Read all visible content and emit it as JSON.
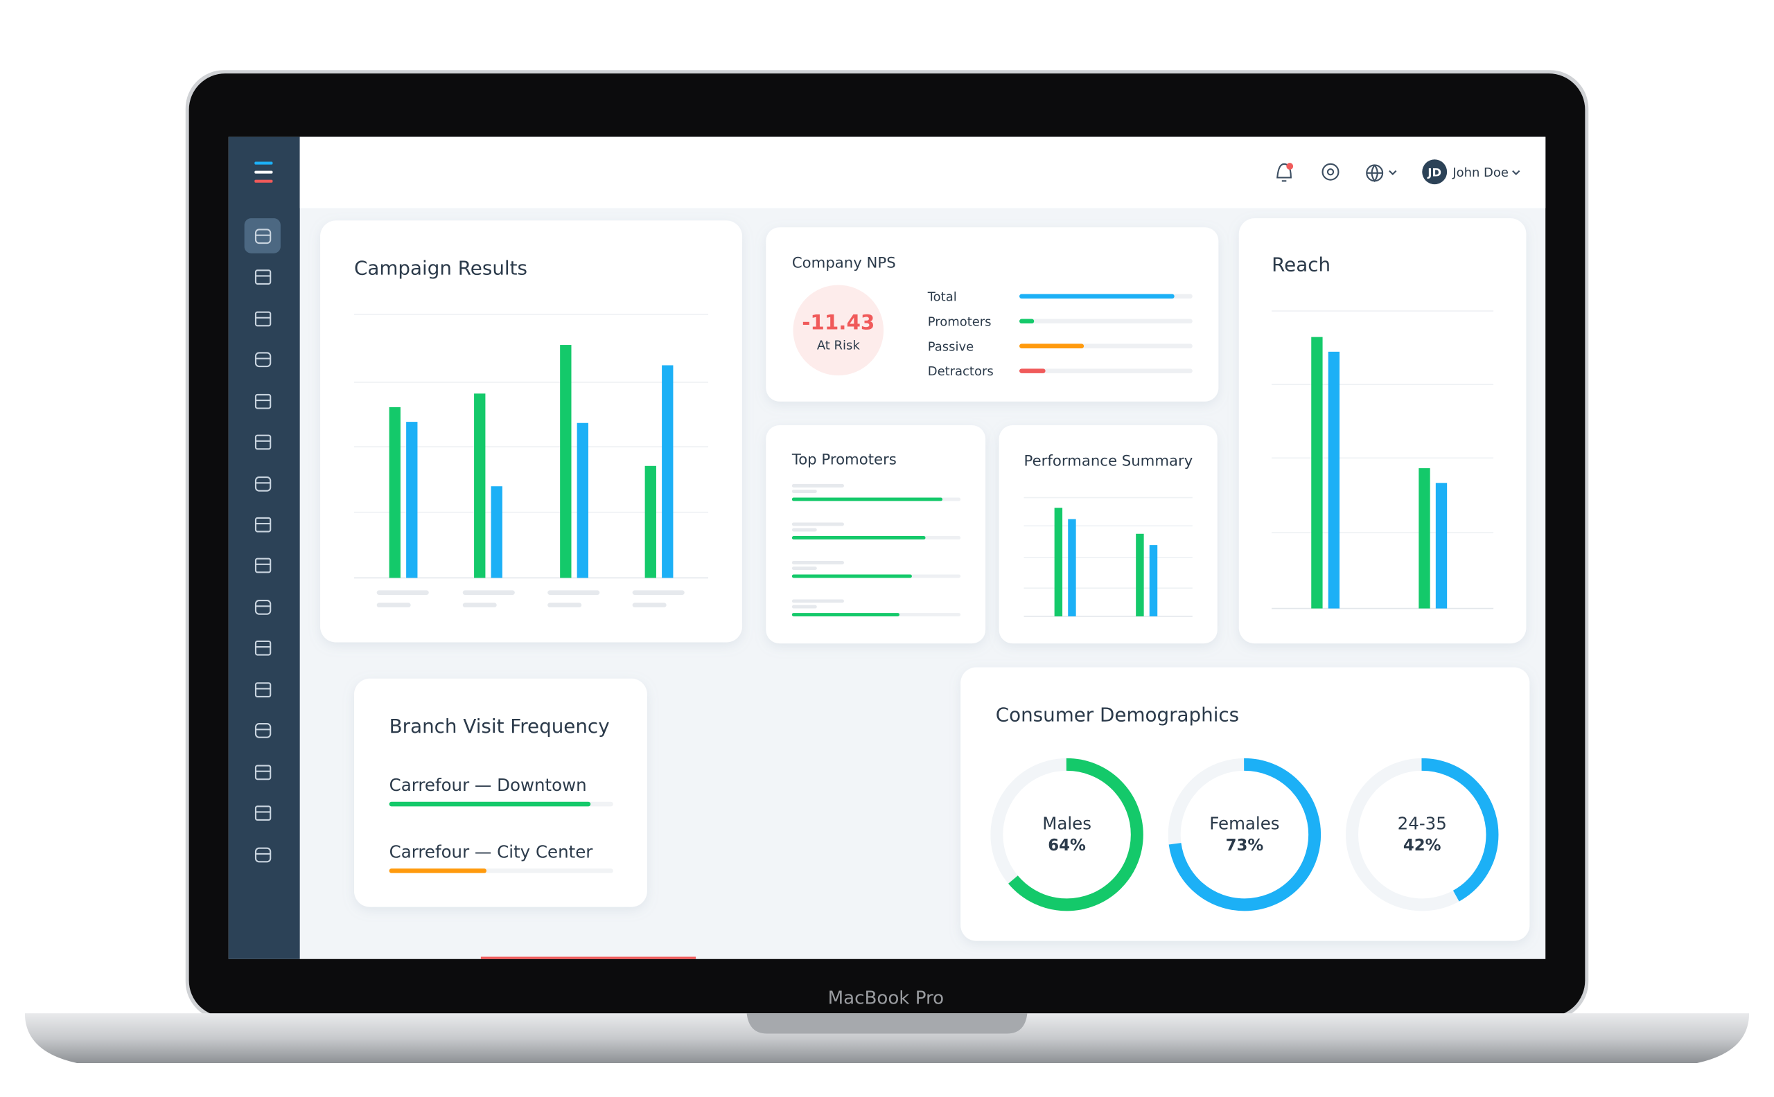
{
  "header": {
    "user_initials": "JD",
    "user_name": "John Doe"
  },
  "laptop_label": "MacBook Pro",
  "campaign_results": {
    "title": "Campaign Results"
  },
  "company_nps": {
    "title": "Company NPS",
    "score": -11.43,
    "status": "At Risk",
    "rows": [
      "Total",
      "Promoters",
      "Passive",
      "Detractors"
    ]
  },
  "top_promoters": {
    "title": "Top Promoters"
  },
  "performance_summary": {
    "title": "Performance Summary"
  },
  "reach": {
    "title": "Reach"
  },
  "branch_visit_frequency": {
    "title": "Branch Visit Frequency",
    "rows": [
      "Carrefour — Downtown",
      "Carrefour — City Center"
    ]
  },
  "consumer_demographics": {
    "type": "donut",
    "title": "Consumer Demographics",
    "categories": [
      "Males",
      "Females",
      "24-35"
    ],
    "values": [
      64,
      73,
      42
    ],
    "value_labels": [
      "64%",
      "73%",
      "42%"
    ],
    "colors": [
      "#14c96a",
      "#1cb0f6",
      "#1cb0f6"
    ]
  }
}
